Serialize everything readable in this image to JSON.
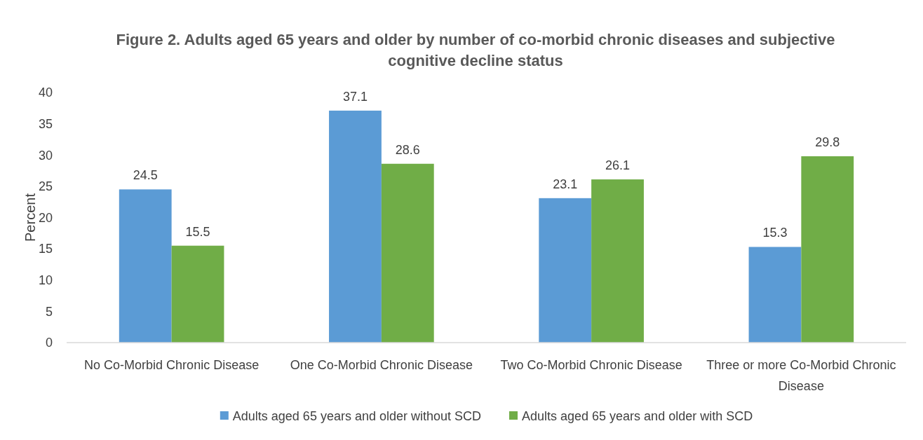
{
  "chart_data": {
    "type": "bar",
    "title": "Figure 2. Adults aged 65 years and older by number of co-morbid chronic diseases and subjective cognitive decline status",
    "ylabel": "Percent",
    "categories": [
      "No Co-Morbid Chronic Disease",
      "One Co-Morbid Chronic Disease",
      "Two Co-Morbid Chronic Disease",
      "Three or more Co-Morbid Chronic Disease"
    ],
    "series": [
      {
        "name": "Adults aged 65 years and older without SCD",
        "color": "#5b9bd5",
        "values": [
          24.5,
          37.1,
          23.1,
          15.3
        ]
      },
      {
        "name": "Adults aged 65 years and older with SCD",
        "color": "#70ad47",
        "values": [
          15.5,
          28.6,
          26.1,
          29.8
        ]
      }
    ],
    "ylim": [
      0,
      40
    ],
    "yticks": [
      0,
      5,
      10,
      15,
      20,
      25,
      30,
      35,
      40
    ],
    "grid": false,
    "legend": "bottom",
    "data_labels": true
  }
}
